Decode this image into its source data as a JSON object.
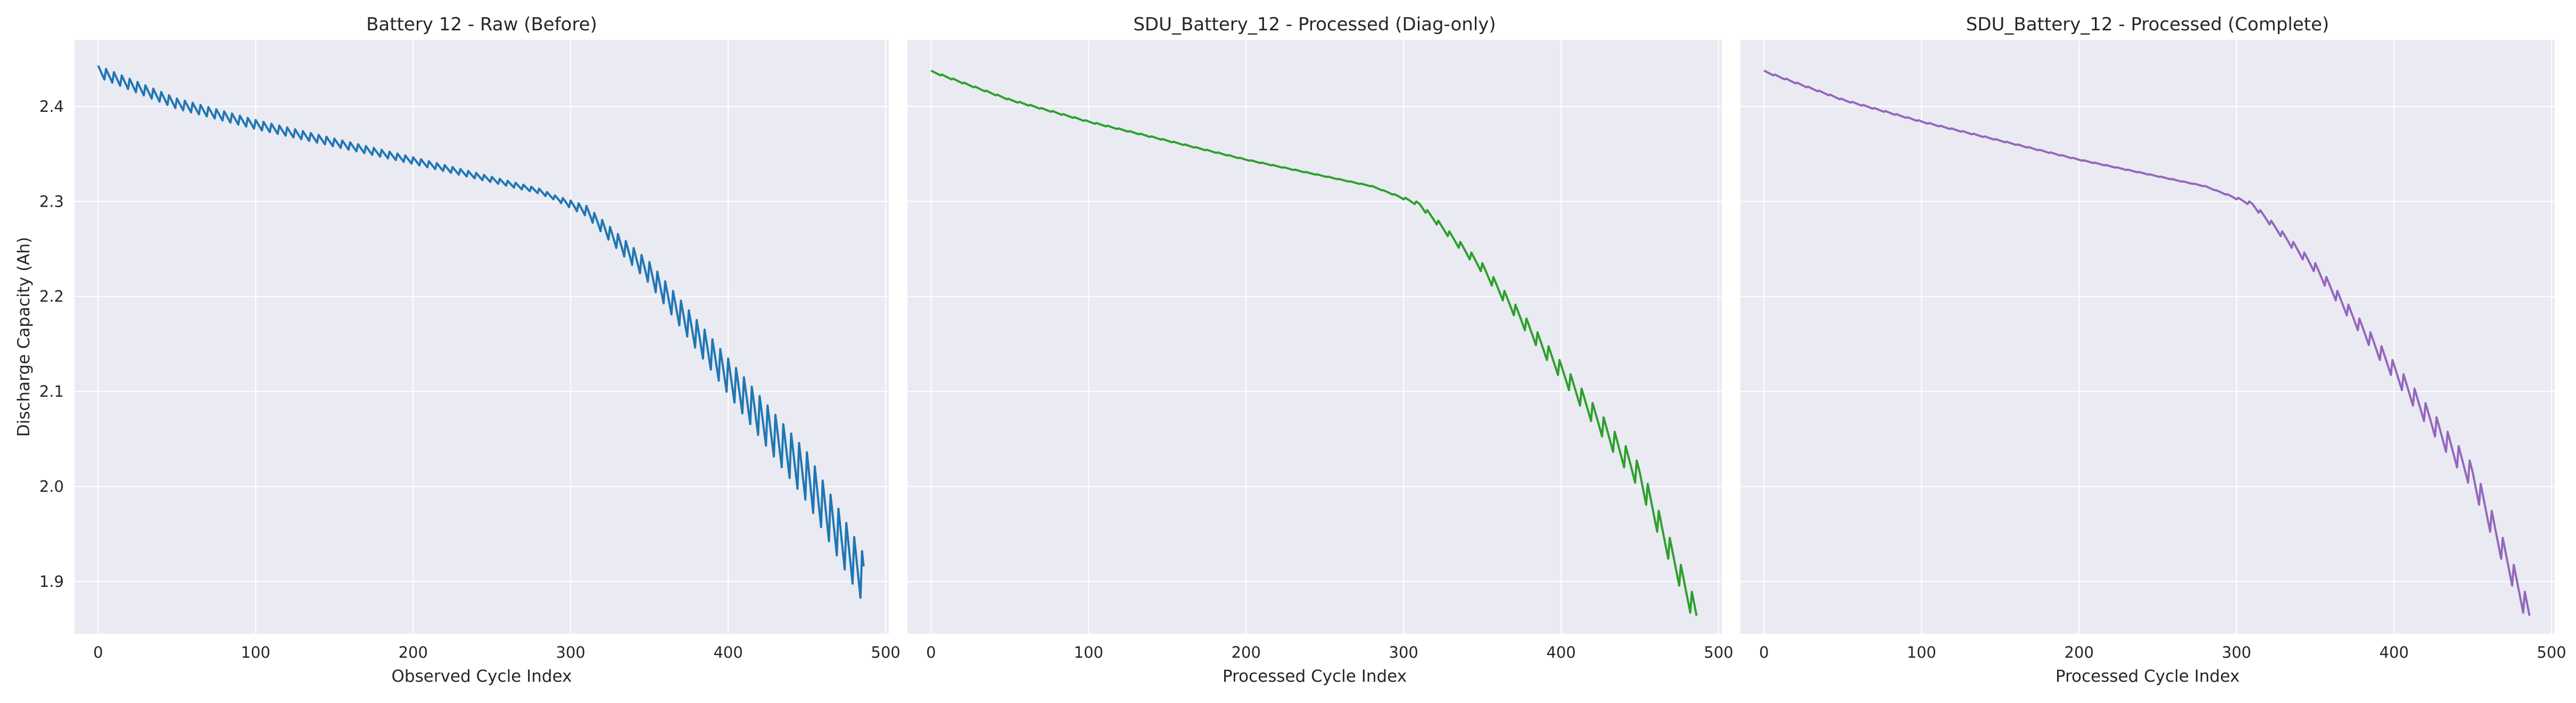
{
  "chart_data": [
    {
      "type": "line",
      "title": "Battery 12 - Raw (Before)",
      "xlabel": "Observed Cycle Index",
      "ylabel": "Discharge Capacity (Ah)",
      "xlim": [
        -15,
        502
      ],
      "ylim": [
        1.845,
        2.47
      ],
      "xticks": [
        0,
        100,
        200,
        300,
        400,
        500
      ],
      "yticks": [
        1.9,
        2.0,
        2.1,
        2.2,
        2.3,
        2.4
      ],
      "color": "#1f77b4",
      "n_points": 487,
      "oscillation_amplitude_early": 0.012,
      "oscillation_amplitude_late": 0.052,
      "oscillation_period": 5,
      "trend_points": [
        [
          0,
          2.437
        ],
        [
          50,
          2.403
        ],
        [
          100,
          2.381
        ],
        [
          200,
          2.343
        ],
        [
          280,
          2.311
        ],
        [
          310,
          2.29
        ],
        [
          350,
          2.225
        ],
        [
          400,
          2.116
        ],
        [
          450,
          2.01
        ],
        [
          487,
          1.9
        ]
      ]
    },
    {
      "type": "line",
      "title": "SDU_Battery_12 - Processed (Diag-only)",
      "xlabel": "Processed Cycle Index",
      "ylabel": "",
      "xlim": [
        -15,
        502
      ],
      "ylim": [
        1.845,
        2.47
      ],
      "xticks": [
        0,
        100,
        200,
        300,
        400,
        500
      ],
      "yticks": [
        1.9,
        2.0,
        2.1,
        2.2,
        2.3,
        2.4
      ],
      "color": "#2ca02c",
      "n_points": 487,
      "oscillation_amplitude_early": 0.0015,
      "oscillation_amplitude_late": 0.026,
      "oscillation_period": 7,
      "trend_points": [
        [
          0,
          2.437
        ],
        [
          50,
          2.407
        ],
        [
          100,
          2.384
        ],
        [
          200,
          2.344
        ],
        [
          280,
          2.316
        ],
        [
          310,
          2.297
        ],
        [
          350,
          2.23
        ],
        [
          400,
          2.122
        ],
        [
          450,
          2.01
        ],
        [
          487,
          1.86
        ]
      ]
    },
    {
      "type": "line",
      "title": "SDU_Battery_12 - Processed (Complete)",
      "xlabel": "Processed Cycle Index",
      "ylabel": "",
      "xlim": [
        -15,
        502
      ],
      "ylim": [
        1.845,
        2.47
      ],
      "xticks": [
        0,
        100,
        200,
        300,
        400,
        500
      ],
      "yticks": [
        1.9,
        2.0,
        2.1,
        2.2,
        2.3,
        2.4
      ],
      "color": "#9467bd",
      "n_points": 487,
      "oscillation_amplitude_early": 0.0015,
      "oscillation_amplitude_late": 0.026,
      "oscillation_period": 7,
      "trend_points": [
        [
          0,
          2.437
        ],
        [
          50,
          2.407
        ],
        [
          100,
          2.384
        ],
        [
          200,
          2.344
        ],
        [
          280,
          2.316
        ],
        [
          310,
          2.297
        ],
        [
          350,
          2.23
        ],
        [
          400,
          2.122
        ],
        [
          450,
          2.01
        ],
        [
          487,
          1.86
        ]
      ]
    }
  ]
}
